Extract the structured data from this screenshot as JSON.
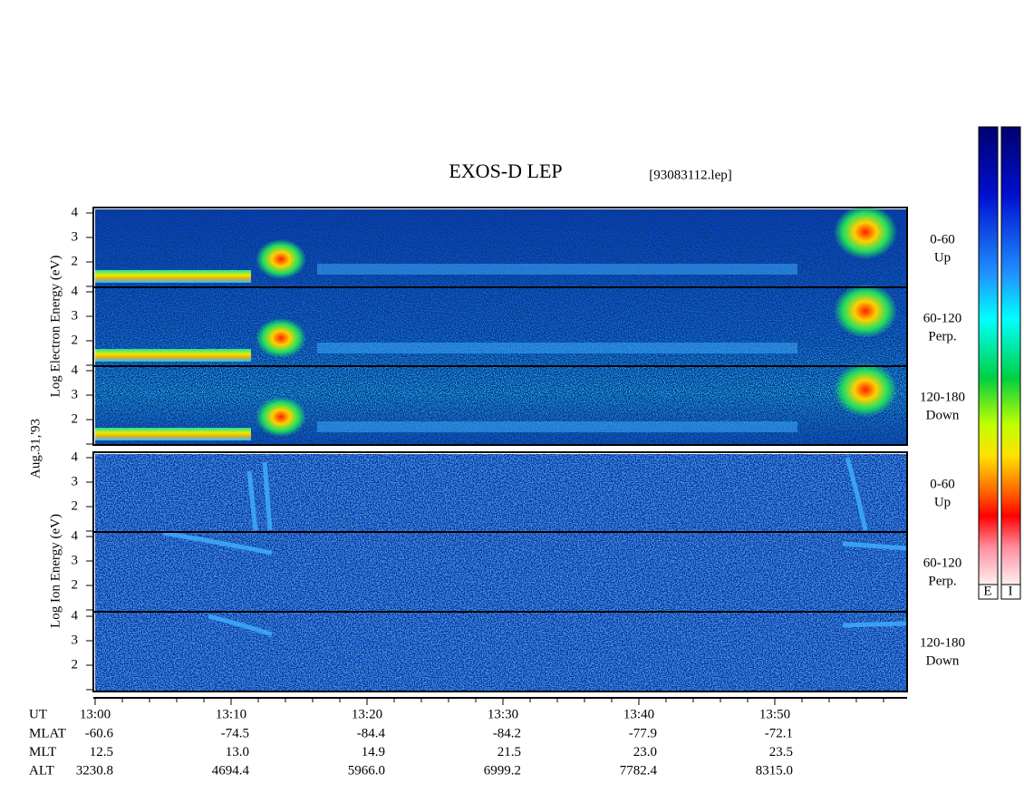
{
  "header": {
    "title": "EXOS-D LEP",
    "file": "[93083112.lep]"
  },
  "date": "Aug.31,'93",
  "electron": {
    "label": "Log Electron Energy (eV)",
    "panels": [
      {
        "ticks": [
          4,
          3,
          2
        ],
        "angle": "0-60",
        "direction": "Up"
      },
      {
        "ticks": [
          4,
          3,
          2
        ],
        "angle": "60-120",
        "direction": "Perp."
      },
      {
        "ticks": [
          4,
          3,
          2
        ],
        "angle": "120-180",
        "direction": "Down"
      }
    ]
  },
  "ion": {
    "label": "Log Ion Energy (eV)",
    "panels": [
      {
        "ticks": [
          4,
          3,
          2
        ],
        "angle": "0-60",
        "direction": "Up"
      },
      {
        "ticks": [
          4,
          3,
          2
        ],
        "angle": "60-120",
        "direction": "Perp."
      },
      {
        "ticks": [
          4,
          3,
          2
        ],
        "angle": "120-180",
        "direction": "Down"
      }
    ]
  },
  "time_axis": {
    "name": "UT",
    "ticks": [
      "13:00",
      "13:10",
      "13:20",
      "13:30",
      "13:40",
      "13:50"
    ]
  },
  "rows": [
    {
      "name": "MLAT",
      "values": [
        "-60.6",
        "-74.5",
        "-84.4",
        "-84.2",
        "-77.9",
        "-72.1"
      ]
    },
    {
      "name": "MLT",
      "values": [
        "12.5",
        "13.0",
        "14.9",
        "21.5",
        "23.0",
        "23.5"
      ]
    },
    {
      "name": "ALT",
      "values": [
        "3230.8",
        "4694.4",
        "5966.0",
        "6999.2",
        "7782.4",
        "8315.0"
      ]
    }
  ],
  "color_bars": [
    "E",
    "I"
  ]
}
